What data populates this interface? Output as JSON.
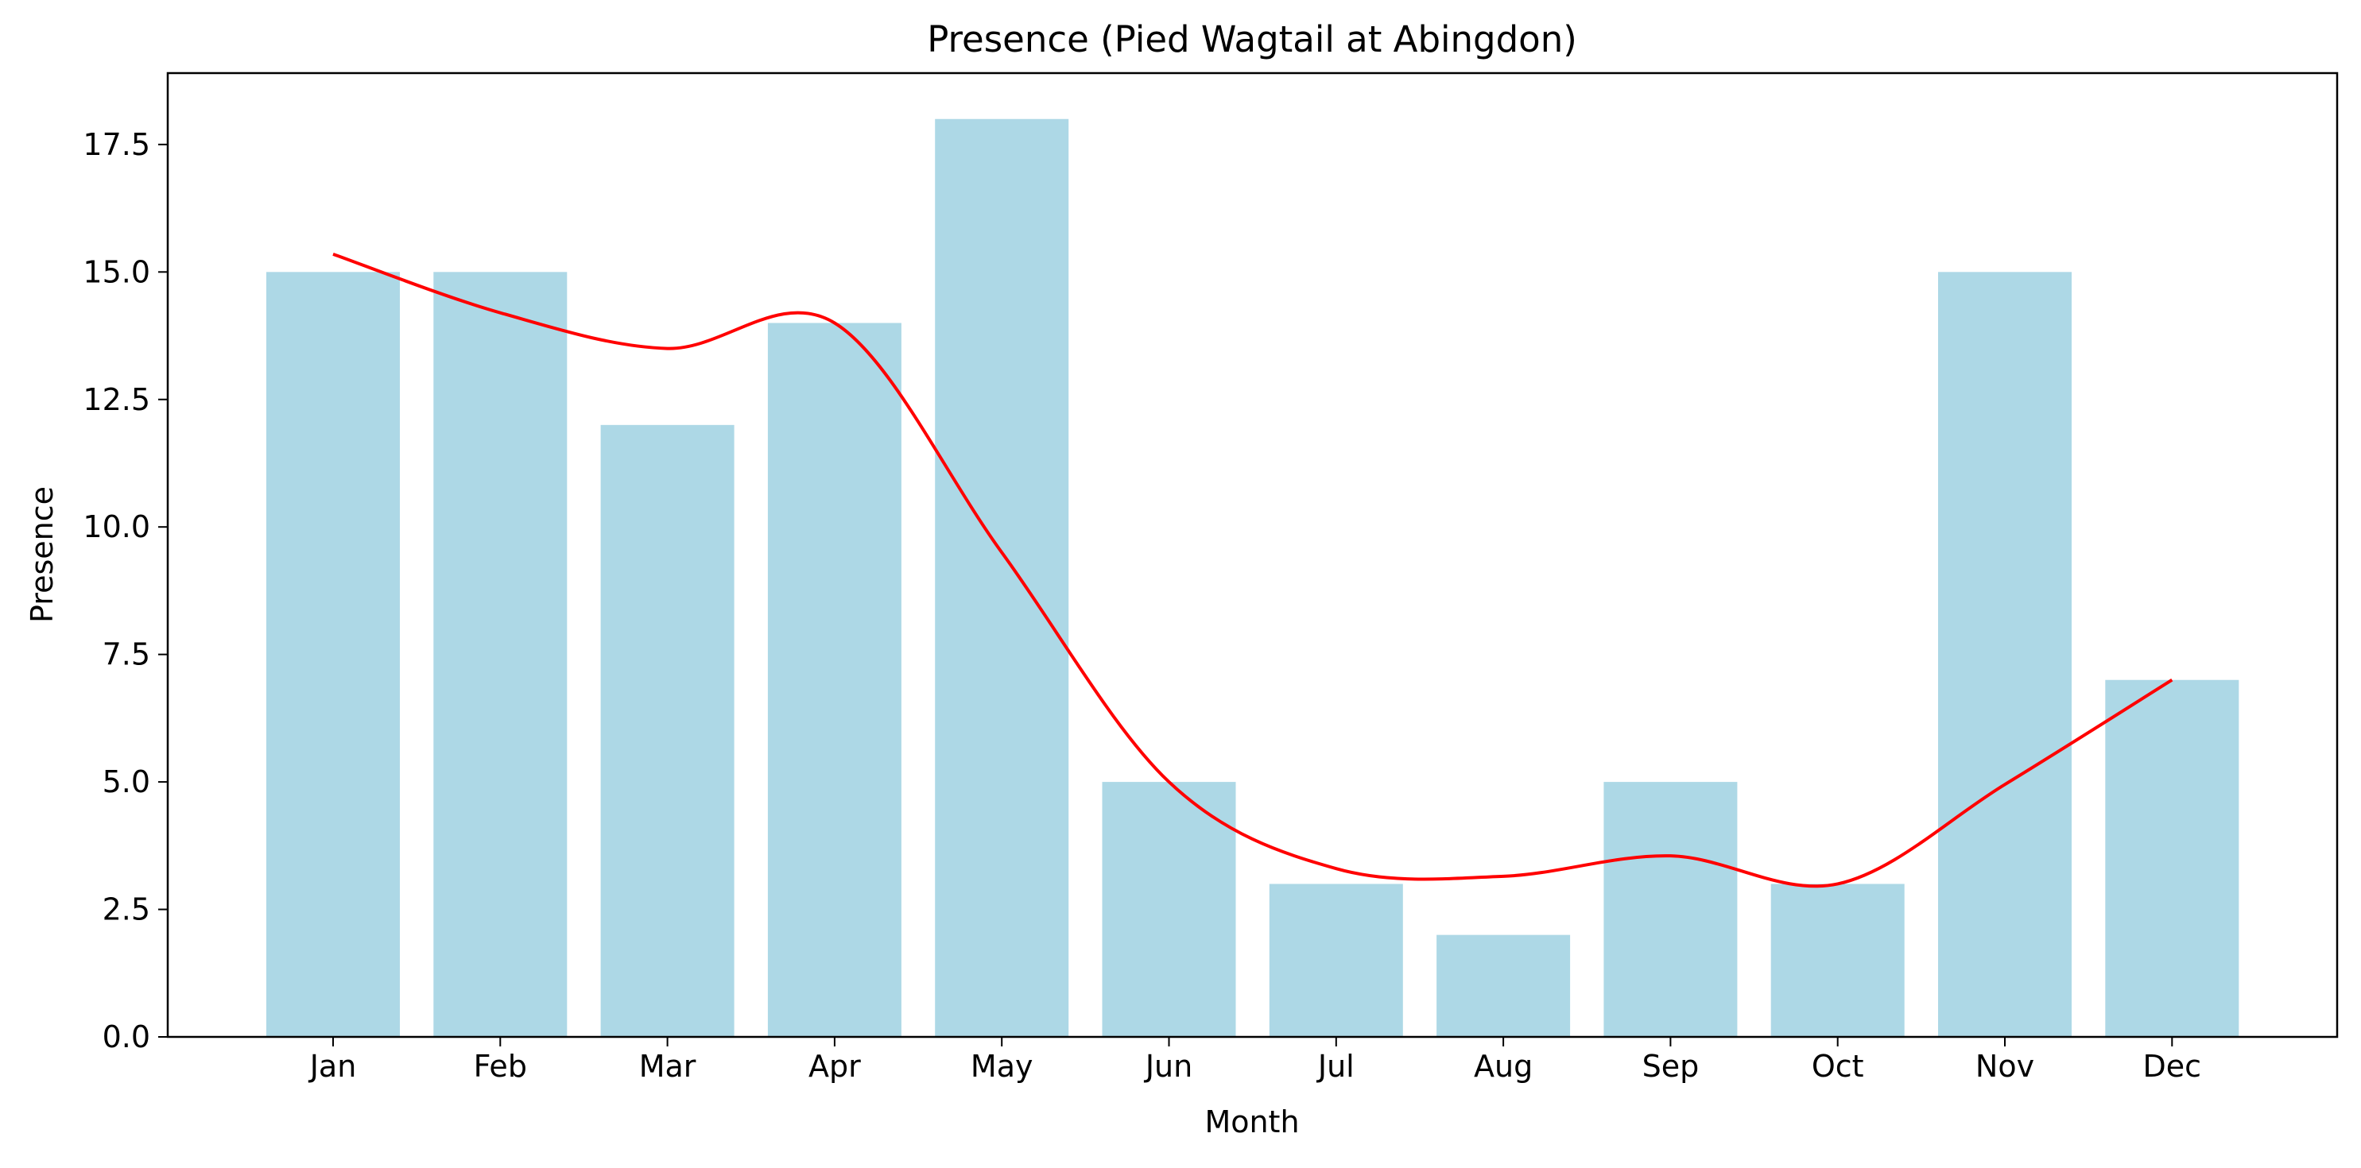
{
  "chart_data": {
    "type": "bar",
    "title": "Presence (Pied Wagtail at Abingdon)",
    "xlabel": "Month",
    "ylabel": "Presence",
    "categories": [
      "Jan",
      "Feb",
      "Mar",
      "Apr",
      "May",
      "Jun",
      "Jul",
      "Aug",
      "Sep",
      "Oct",
      "Nov",
      "Dec"
    ],
    "series": [
      {
        "type": "bar",
        "values": [
          15,
          15,
          12,
          14,
          18,
          5,
          3,
          2,
          5,
          3,
          15,
          7
        ],
        "color": "#add8e6"
      },
      {
        "type": "line",
        "values": [
          15.35,
          14.2,
          13.5,
          14.0,
          9.5,
          5.0,
          3.3,
          3.15,
          3.55,
          3.0,
          4.95,
          7.0
        ],
        "color": "#ff0000",
        "smooth": true
      }
    ],
    "ylim": [
      0,
      18.9
    ],
    "yticks": [
      0.0,
      2.5,
      5.0,
      7.5,
      10.0,
      12.5,
      15.0,
      17.5
    ],
    "ytick_labels": [
      "0.0",
      "2.5",
      "5.0",
      "7.5",
      "10.0",
      "12.5",
      "15.0",
      "17.5"
    ],
    "grid": false,
    "legend": "none"
  }
}
